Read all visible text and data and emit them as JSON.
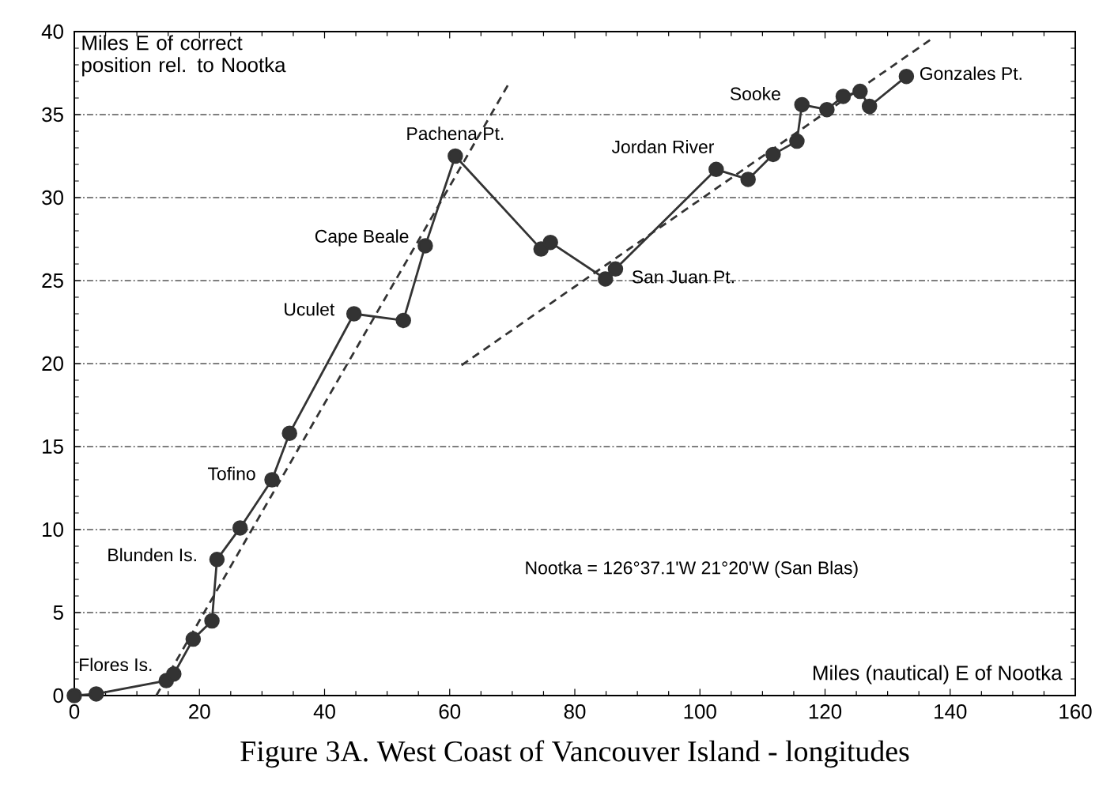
{
  "chart_data": {
    "type": "line",
    "title": "Figure 3A.  West Coast of Vancouver Island - longitudes",
    "ylabel": "Miles E of correct position rel. to Nootka",
    "xlabel": "Miles (nautical) E of Nootka",
    "xlim": [
      0,
      160
    ],
    "ylim": [
      0,
      40
    ],
    "xticks": [
      0,
      20,
      40,
      60,
      80,
      100,
      120,
      140,
      160
    ],
    "yticks": [
      0,
      5,
      10,
      15,
      20,
      25,
      30,
      35,
      40
    ],
    "grid": "y",
    "series": [
      {
        "color": "#333333",
        "marker": "circle",
        "line_style": "solid",
        "x": [
          0,
          3.5,
          14.7,
          15.9,
          19.0,
          22.0,
          22.8,
          26.5,
          31.6,
          34.4,
          44.7,
          52.6,
          56.1,
          60.9,
          74.6,
          76.1,
          84.9,
          86.5,
          102.6,
          107.7,
          111.7,
          115.5,
          116.3,
          120.3,
          122.9,
          125.6,
          127.1,
          133.0
        ],
        "values": [
          0,
          0.1,
          0.9,
          1.3,
          3.4,
          4.5,
          8.2,
          10.1,
          13.0,
          15.8,
          23.0,
          22.6,
          27.1,
          32.5,
          26.9,
          27.3,
          25.1,
          25.7,
          31.7,
          31.1,
          32.6,
          33.4,
          35.6,
          35.3,
          36.1,
          36.4,
          35.5,
          37.3
        ]
      },
      {
        "color": "#333333",
        "marker": "none",
        "line_style": "dashed",
        "x": [
          13.1,
          69.5
        ],
        "values": [
          0,
          36.9
        ]
      },
      {
        "color": "#333333",
        "marker": "none",
        "line_style": "dashed",
        "x": [
          61.9,
          136.8
        ],
        "values": [
          19.9,
          39.5
        ]
      }
    ],
    "annotations": [
      {
        "text": "Flores Is.",
        "x": 15.9,
        "y": 1.3
      },
      {
        "text": "Blunden Is.",
        "x": 22.8,
        "y": 8.2
      },
      {
        "text": "Tofino",
        "x": 31.6,
        "y": 13.0
      },
      {
        "text": "Uculet",
        "x": 44.7,
        "y": 23.0
      },
      {
        "text": "Cape Beale",
        "x": 56.1,
        "y": 27.1
      },
      {
        "text": "Pachena Pt.",
        "x": 60.9,
        "y": 32.5
      },
      {
        "text": "San Juan Pt.",
        "x": 86.5,
        "y": 25.7
      },
      {
        "text": "Jordan River",
        "x": 102.6,
        "y": 31.7
      },
      {
        "text": "Sooke",
        "x": 116.3,
        "y": 35.6
      },
      {
        "text": "Gonzales Pt.",
        "x": 133.0,
        "y": 37.3
      },
      "Nootka = 126°37.1'W  21°20'W (San Blas)"
    ]
  }
}
